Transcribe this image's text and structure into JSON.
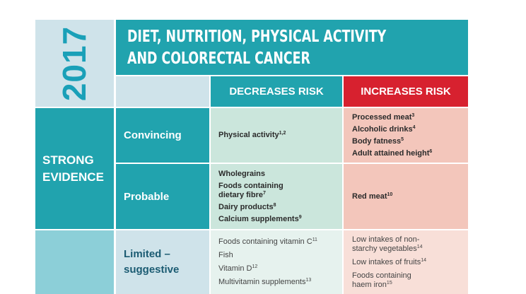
{
  "year": "2017",
  "title": {
    "line1": "DIET, NUTRITION, PHYSICAL ACTIVITY",
    "line2": "AND COLORECTAL CANCER"
  },
  "headers": {
    "decreases": "DECREASES RISK",
    "increases": "INCREASES RISK"
  },
  "strong_evidence": {
    "line1": "STRONG",
    "line2": "EVIDENCE"
  },
  "rows": {
    "convincing": {
      "label": "Convincing",
      "decreases": [
        {
          "text": "Physical activity",
          "ref": "1,2"
        }
      ],
      "increases": [
        {
          "text": "Processed meat",
          "ref": "3"
        },
        {
          "text": "Alcoholic drinks",
          "ref": "4"
        },
        {
          "text": "Body fatness",
          "ref": "5"
        },
        {
          "text": "Adult attained height",
          "ref": "6"
        }
      ]
    },
    "probable": {
      "label": "Probable",
      "decreases": [
        {
          "text": "Wholegrains",
          "ref": ""
        },
        {
          "text": "Foods containing",
          "ref": ""
        },
        {
          "text": "dietary fibre",
          "ref": "7"
        },
        {
          "text": "Dairy products",
          "ref": "8"
        },
        {
          "text": "Calcium supplements",
          "ref": "9"
        }
      ],
      "increases": [
        {
          "text": "Red meat",
          "ref": "10"
        }
      ]
    },
    "limited": {
      "label_line1": "Limited –",
      "label_line2": "suggestive",
      "decreases": [
        {
          "text": "Foods containing vitamin C",
          "ref": "11"
        },
        {
          "text": "Fish",
          "ref": ""
        },
        {
          "text": "Vitamin D",
          "ref": "12"
        },
        {
          "text": "Multivitamin supplements",
          "ref": "13"
        }
      ],
      "increases": [
        {
          "text": "Low intakes of non-",
          "ref": ""
        },
        {
          "text": "starchy vegetables",
          "ref": "14"
        },
        {
          "text": "Low intakes of fruits",
          "ref": "14"
        },
        {
          "text": "Foods containing",
          "ref": ""
        },
        {
          "text": "haem iron",
          "ref": "15"
        }
      ]
    }
  },
  "colors": {
    "teal": "#21a3ae",
    "red": "#d7212f",
    "light_blue": "#cfe3ea",
    "green_cell": "#cbe6dc",
    "pink_cell": "#f3c6bb"
  }
}
